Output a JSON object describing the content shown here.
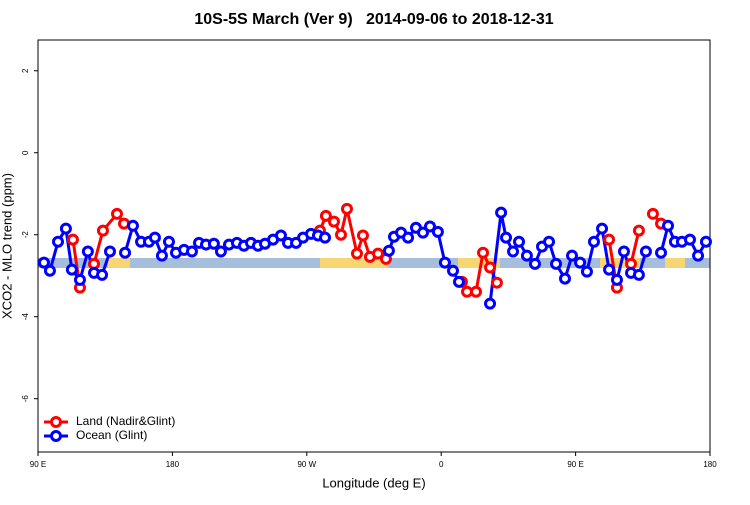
{
  "chart_data": {
    "type": "line",
    "title": "10S-5S March (Ver 9)   2014-09-06 to 2018-12-31",
    "xlabel": "Longitude (deg E)",
    "ylabel": "XCO2 - MLO trend (ppm)",
    "xlim": [
      90,
      540
    ],
    "xticks": [
      {
        "value": 90,
        "label": "90 E"
      },
      {
        "value": 180,
        "label": "180"
      },
      {
        "value": 270,
        "label": "90 W"
      },
      {
        "value": 360,
        "label": "0"
      },
      {
        "value": 450,
        "label": "90 E"
      },
      {
        "value": 540,
        "label": "180"
      }
    ],
    "ylim": [
      -7.3,
      2.75
    ],
    "yticks": [
      2,
      0,
      -2,
      -4,
      -6
    ],
    "legend": "bottom-left",
    "series": [
      {
        "name": "Land (Nadir&Glint)",
        "color": "#ff0000",
        "x": [
          113.4,
          118.1,
          122.8,
          127.5,
          133.5,
          142.9,
          147.6,
          213.2,
          278.8,
          282.8,
          288.2,
          292.9,
          296.9,
          303.6,
          307.6,
          312.3,
          317.7,
          323.0,
          348.4,
          373.9,
          377.3,
          383.3,
          388.0,
          392.7,
          397.3,
          434.9,
          472.4,
          477.7,
          482.4,
          487.1,
          492.4,
          497.1,
          501.8,
          507.2
        ],
        "values": [
          -2.12,
          -3.29,
          null,
          -2.71,
          -1.9,
          -1.49,
          -1.73,
          null,
          -1.9,
          -1.54,
          -1.68,
          -2.0,
          -1.37,
          -2.46,
          -2.02,
          -2.54,
          -2.46,
          -2.59,
          null,
          -3.15,
          -3.39,
          -3.39,
          -2.44,
          -2.8,
          -3.17,
          null,
          -2.12,
          -3.29,
          null,
          -2.71,
          -1.9,
          null,
          -1.49,
          -1.73
        ]
      },
      {
        "name": "Ocean (Glint)",
        "color": "#0000ff",
        "x": [
          94.0,
          98.0,
          103.4,
          108.7,
          112.7,
          118.1,
          123.4,
          127.5,
          132.9,
          138.2,
          143.3,
          148.3,
          153.6,
          159.0,
          164.3,
          168.3,
          173.0,
          177.7,
          182.4,
          187.8,
          193.1,
          197.8,
          202.5,
          207.8,
          212.5,
          217.9,
          223.2,
          227.9,
          232.6,
          237.3,
          242.0,
          247.4,
          252.7,
          257.4,
          262.8,
          267.5,
          272.8,
          277.5,
          282.2,
          303.6,
          325.0,
          328.4,
          333.1,
          337.8,
          343.1,
          347.8,
          352.5,
          357.8,
          362.5,
          367.9,
          371.9,
          382.3,
          392.7,
          400.1,
          403.4,
          408.1,
          412.1,
          417.4,
          422.8,
          427.5,
          432.2,
          436.9,
          442.9,
          447.6,
          453.0,
          457.6,
          462.3,
          467.7,
          472.4,
          477.7,
          482.4,
          487.1,
          492.4,
          497.1,
          502.2,
          507.2,
          511.9,
          516.5,
          521.2,
          526.6,
          532.0,
          537.3
        ],
        "values": [
          -2.68,
          -2.88,
          -2.17,
          -1.85,
          -2.85,
          -3.1,
          -2.41,
          -2.93,
          -2.98,
          -2.41,
          null,
          -2.44,
          -1.78,
          -2.17,
          -2.17,
          -2.07,
          -2.51,
          -2.17,
          -2.44,
          -2.37,
          -2.41,
          -2.2,
          -2.24,
          -2.22,
          -2.41,
          -2.24,
          -2.2,
          -2.27,
          -2.2,
          -2.27,
          -2.22,
          -2.12,
          -2.02,
          -2.2,
          -2.2,
          -2.07,
          -1.98,
          -2.02,
          -2.07,
          null,
          -2.39,
          -2.05,
          -1.95,
          -2.07,
          -1.83,
          -1.95,
          -1.8,
          -1.93,
          -2.68,
          -2.88,
          -3.15,
          null,
          -3.68,
          -1.46,
          -2.07,
          -2.41,
          -2.17,
          -2.51,
          -2.71,
          -2.29,
          -2.17,
          -2.71,
          -3.07,
          -2.51,
          -2.68,
          -2.9,
          -2.17,
          -1.85,
          -2.85,
          -3.1,
          -2.41,
          -2.93,
          -2.98,
          -2.41,
          null,
          -2.44,
          -1.78,
          -2.17,
          -2.17,
          -2.12,
          -2.51,
          -2.17
        ]
      }
    ]
  }
}
